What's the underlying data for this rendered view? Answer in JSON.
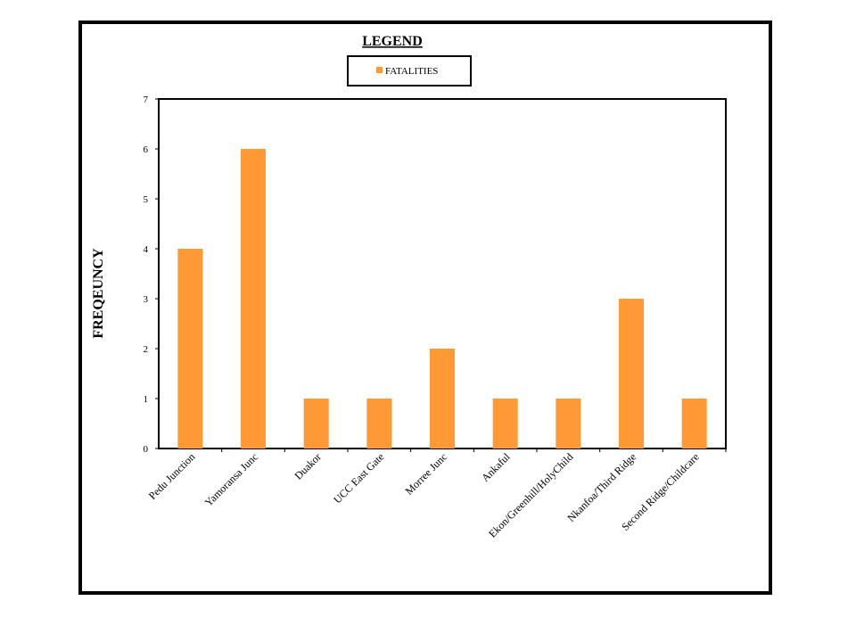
{
  "chart_data": {
    "type": "bar",
    "legend_title": "LEGEND",
    "legend_placement": "top-center",
    "ylabel": "FREQEUNCY",
    "xlabel": "",
    "ylim": [
      0,
      7
    ],
    "yticks": [
      0,
      1,
      2,
      3,
      4,
      5,
      6,
      7
    ],
    "grid": false,
    "categories": [
      "Pedu Junction",
      "Yamoransa Junc",
      "Duakor",
      "UCC East Gate",
      "Morree Junc",
      "Ankaful",
      "Ekon/Greenhill/HolyChild",
      "Nkanfoa/Third Ridge",
      "Second Ridge/Childcare"
    ],
    "series": [
      {
        "name": "FATALITIES",
        "color": "#FF9933",
        "values": [
          4,
          6,
          1,
          1,
          2,
          1,
          1,
          3,
          1
        ]
      }
    ]
  }
}
